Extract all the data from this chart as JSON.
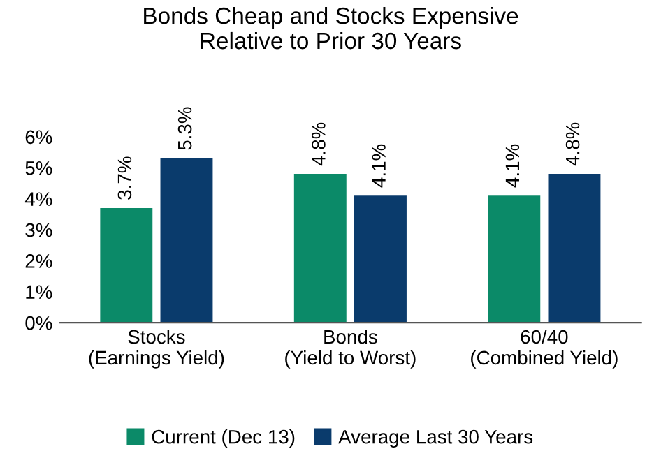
{
  "chart_data": {
    "type": "bar",
    "title": "Bonds Cheap and Stocks Expensive\nRelative to Prior 30 Years",
    "categories": [
      "Stocks\n(Earnings Yield)",
      "Bonds\n(Yield to Worst)",
      "60/40\n(Combined Yield)"
    ],
    "series": [
      {
        "name": "Current (Dec 13)",
        "color": "#0b8a68",
        "values": [
          3.7,
          4.8,
          4.1
        ],
        "value_labels": [
          "3.7%",
          "4.8%",
          "4.1%"
        ]
      },
      {
        "name": "Average Last 30 Years",
        "color": "#0a3b6c",
        "values": [
          5.3,
          4.1,
          4.8
        ],
        "value_labels": [
          "5.3%",
          "4.1%",
          "4.8%"
        ]
      }
    ],
    "ylim": [
      0,
      6
    ],
    "yticks": [
      {
        "value": 0,
        "label": "0%"
      },
      {
        "value": 1,
        "label": "1%"
      },
      {
        "value": 2,
        "label": "2%"
      },
      {
        "value": 3,
        "label": "3%"
      },
      {
        "value": 4,
        "label": "4%"
      },
      {
        "value": 5,
        "label": "5%"
      },
      {
        "value": 6,
        "label": "6%"
      }
    ],
    "grid": false,
    "legend": "bottom"
  }
}
